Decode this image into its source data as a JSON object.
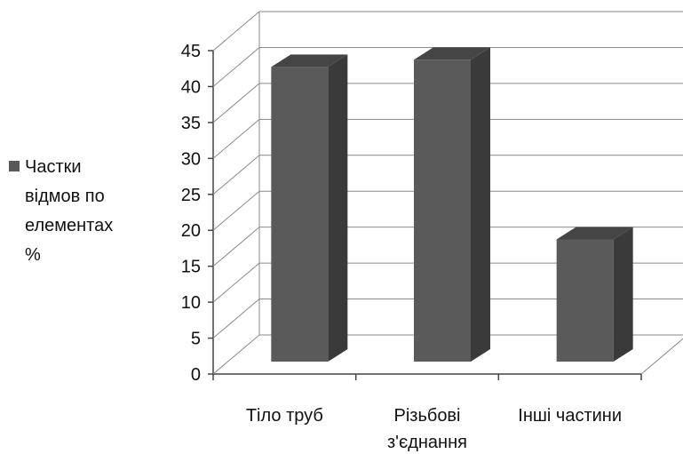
{
  "chart_data": {
    "type": "bar",
    "categories": [
      "Тіло труб",
      "Різьбові з'єднання",
      "Інші частини"
    ],
    "category_lines": [
      [
        "Тіло труб"
      ],
      [
        "Різьбові",
        "з'єднання"
      ],
      [
        "Інші частини"
      ]
    ],
    "series": [
      {
        "name": "Частки відмов по елементах %",
        "values": [
          41,
          42,
          17
        ],
        "color": "#5a5a5a"
      }
    ],
    "ylim": [
      0,
      45
    ],
    "yticks": [
      0,
      5,
      10,
      15,
      20,
      25,
      30,
      35,
      40,
      45
    ],
    "grid": true,
    "legend_position": "left",
    "three_d": true
  },
  "legend": {
    "lines": [
      "Частки",
      "відмов по",
      "елементах",
      "%"
    ]
  }
}
